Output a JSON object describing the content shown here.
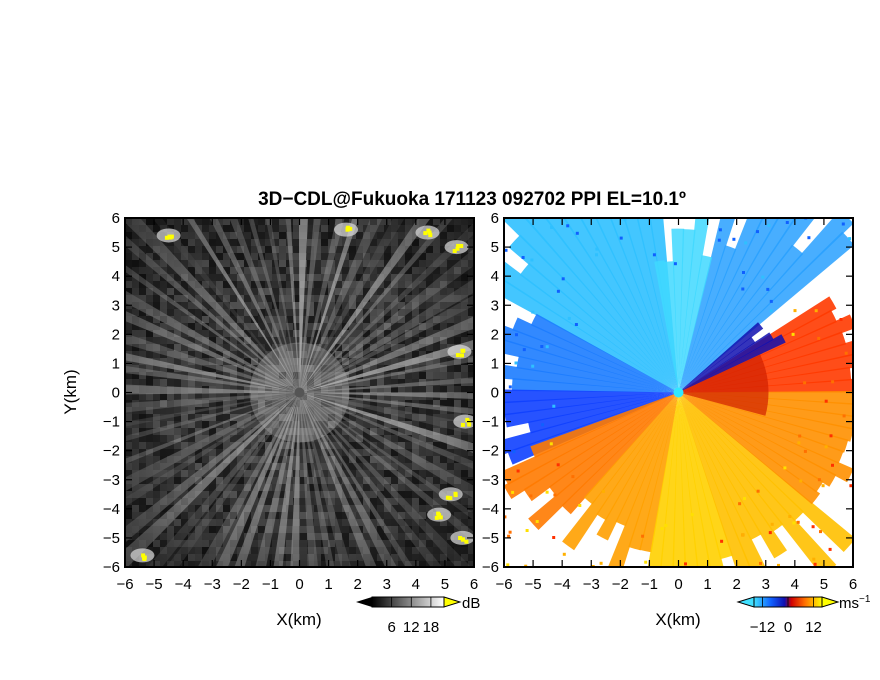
{
  "title": "3D−CDL@Fukuoka 171123 092702 PPI EL=10.1º",
  "chart_data": [
    {
      "type": "heatmap",
      "name": "",
      "xlabel": "X(km)",
      "ylabel": "Y(km)",
      "xlim": [
        -6,
        6
      ],
      "ylim": [
        -6,
        6
      ],
      "x_ticks": [
        "−6",
        "−5",
        "−4",
        "−3",
        "−2",
        "−1",
        "0",
        "1",
        "2",
        "3",
        "4",
        "5",
        "6"
      ],
      "y_ticks": [
        "6",
        "5",
        "4",
        "3",
        "2",
        "1",
        "0",
        "−1",
        "−2",
        "−3",
        "−4",
        "−5",
        "−6"
      ],
      "colorbar": {
        "unit": "dB",
        "ticks": [
          "6",
          "12",
          "18"
        ],
        "range": [
          0,
          22
        ],
        "colormap": "grayscale",
        "high_color": "#ffff00"
      },
      "highlights": [
        {
          "x": -4.5,
          "y": 5.4
        },
        {
          "x": 1.6,
          "y": 5.6
        },
        {
          "x": 4.4,
          "y": 5.5
        },
        {
          "x": 5.4,
          "y": 5.0
        },
        {
          "x": 5.5,
          "y": 1.4
        },
        {
          "x": 5.7,
          "y": -1.0
        },
        {
          "x": 5.2,
          "y": -3.5
        },
        {
          "x": 4.8,
          "y": -4.2
        },
        {
          "x": 5.6,
          "y": -5.0
        },
        {
          "x": -5.4,
          "y": -5.6
        }
      ]
    },
    {
      "type": "heatmap",
      "name": "",
      "xlabel": "X(km)",
      "ylabel": "",
      "xlim": [
        -6,
        6
      ],
      "ylim": [
        -6,
        6
      ],
      "x_ticks": [
        "−6",
        "−5",
        "−4",
        "−3",
        "−2",
        "−1",
        "0",
        "1",
        "2",
        "3",
        "4",
        "5",
        "6"
      ],
      "y_ticks": [
        "6",
        "5",
        "4",
        "3",
        "2",
        "1",
        "0",
        "−1",
        "−2",
        "−3",
        "−4",
        "−5",
        "−6"
      ],
      "colorbar": {
        "unit": "ms",
        "unit_exp": "−1",
        "ticks": [
          "−12",
          "0",
          "12"
        ],
        "range": [
          -16,
          16
        ],
        "colormap": "velocity"
      }
    }
  ]
}
